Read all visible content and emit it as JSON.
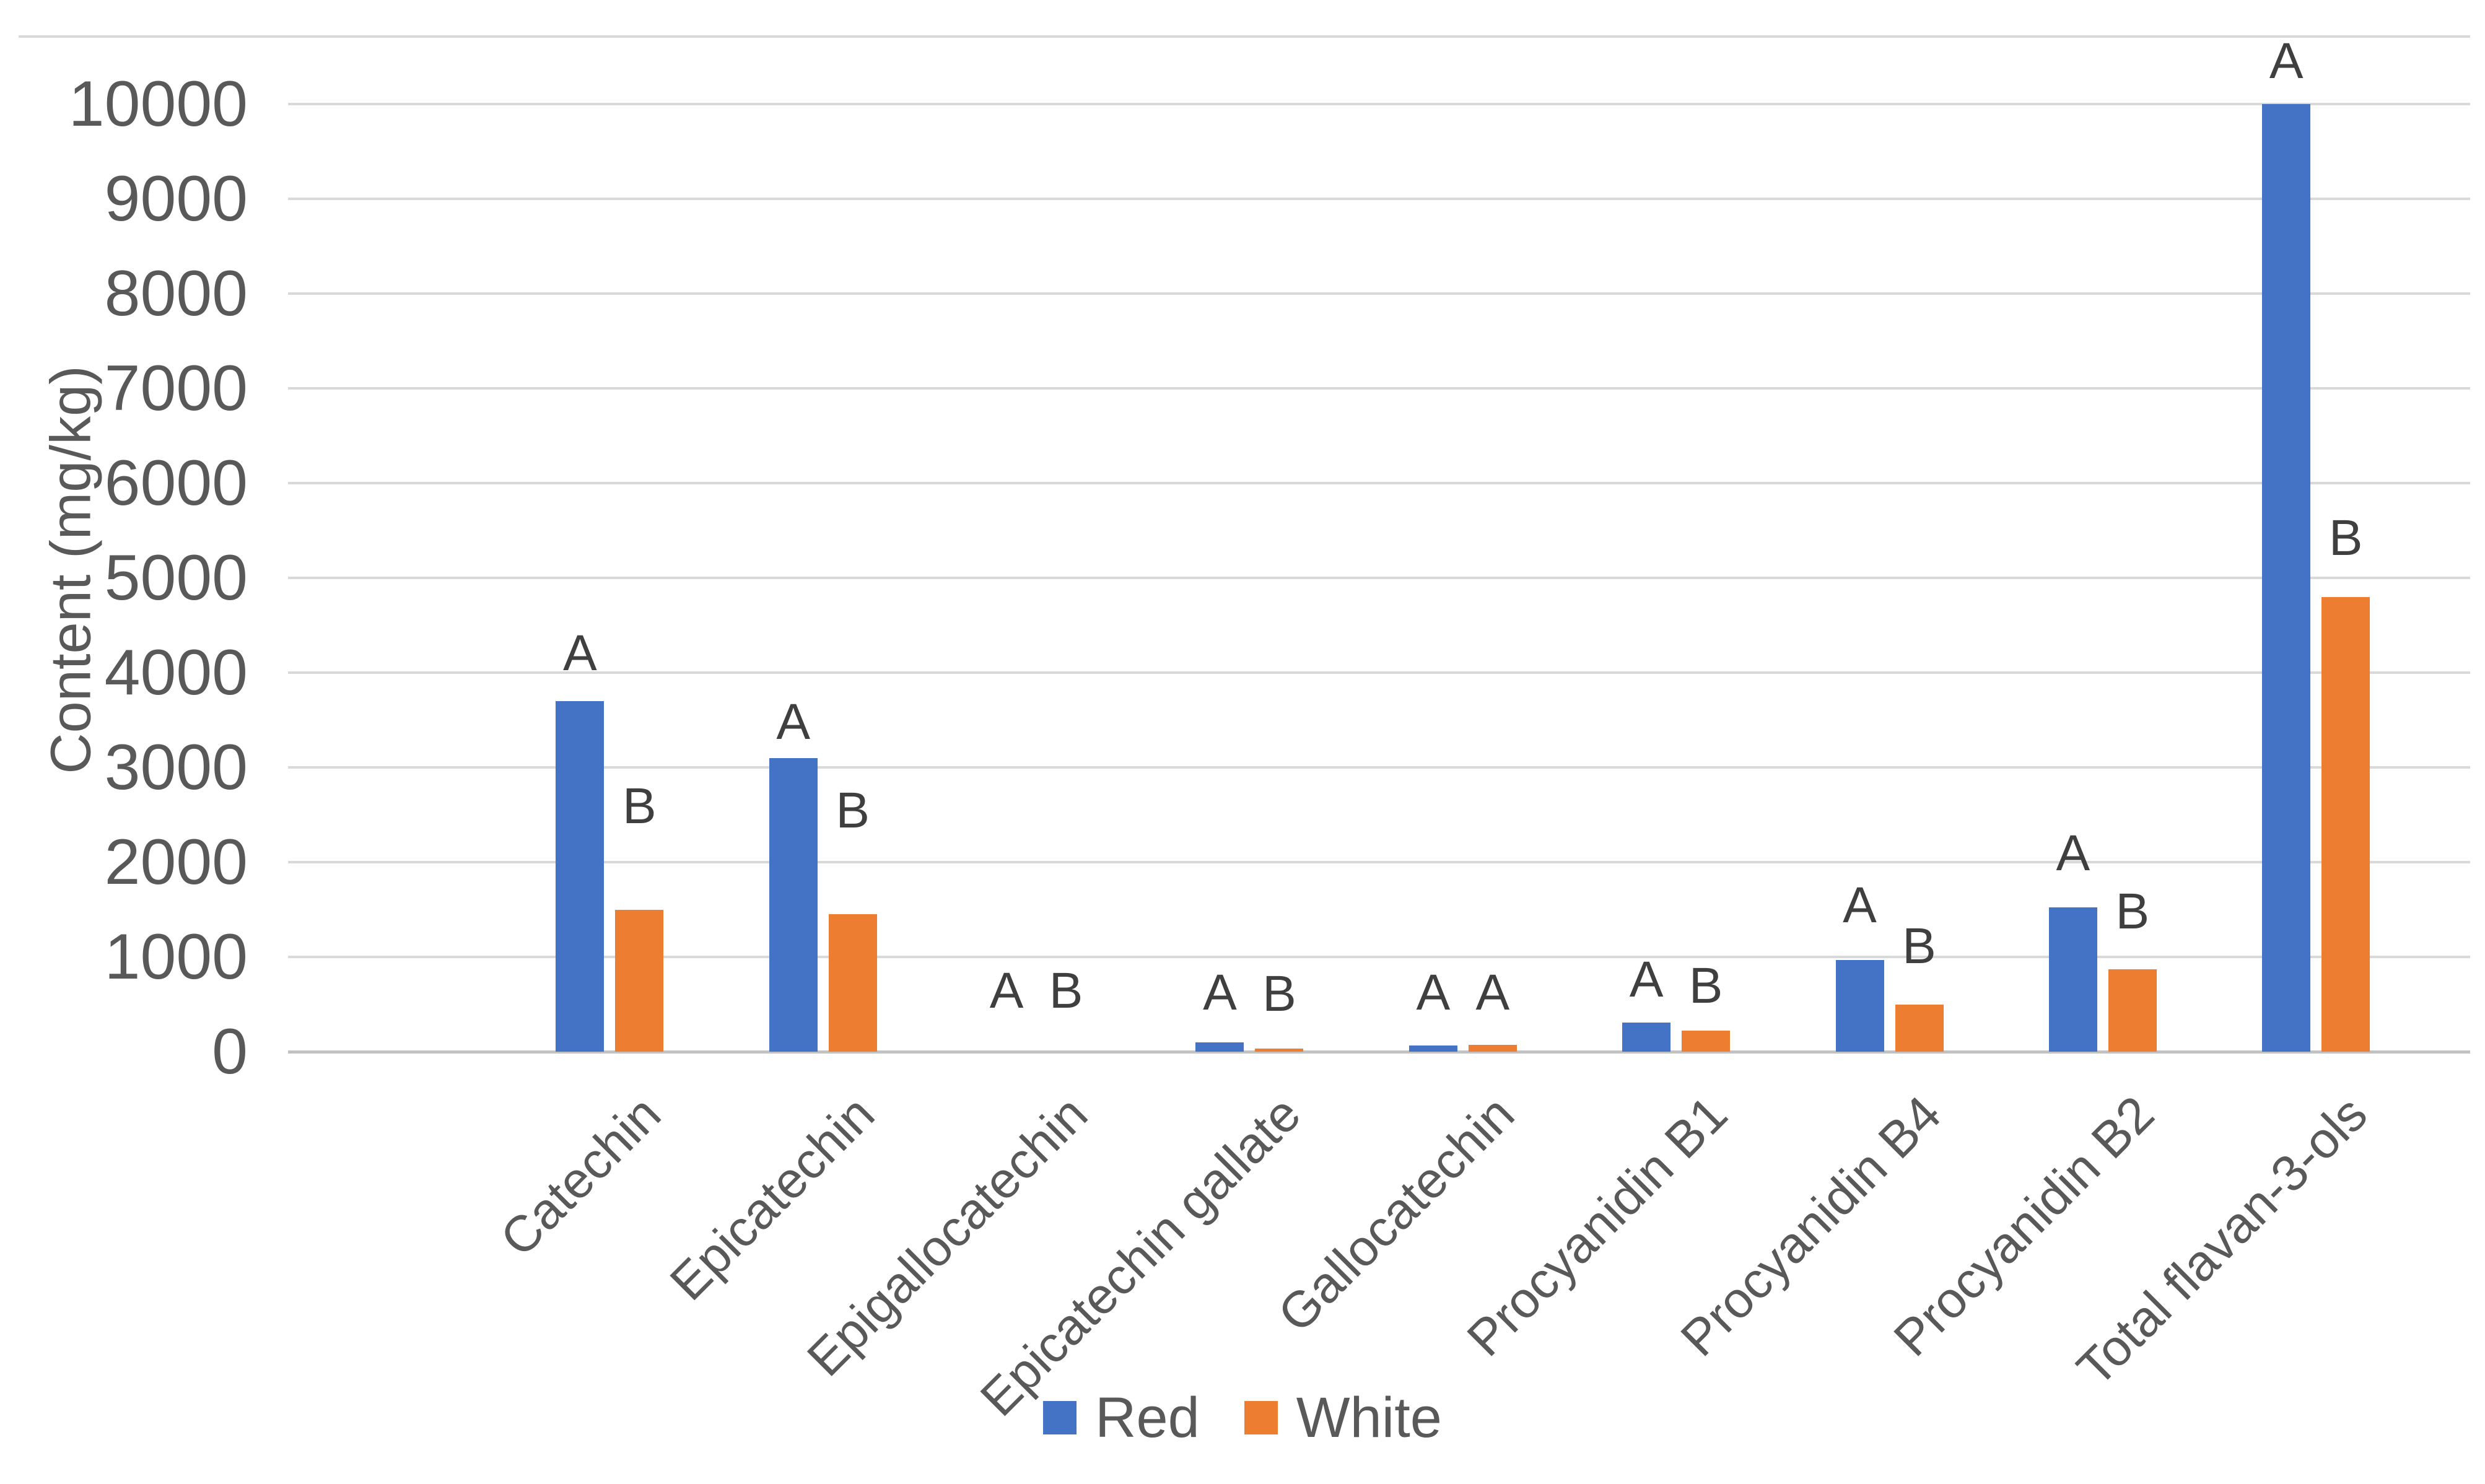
{
  "chart_data": {
    "type": "bar",
    "title": "",
    "xlabel": "",
    "ylabel": "Content (mg/kg)",
    "ylim": [
      0,
      10000
    ],
    "ytick_step": 1000,
    "ytick_labels": [
      "0",
      "1000",
      "2000",
      "3000",
      "4000",
      "5000",
      "6000",
      "7000",
      "8000",
      "9000",
      "10000"
    ],
    "grid": true,
    "legend_position": "bottom-center",
    "categories": [
      "Catechin",
      "Epicatechin",
      "Epigallocatechin",
      "Epicatechin gallate",
      "Gallocatechin",
      "Procyanidin B1",
      "Procyanidin B4",
      "Procyanidin B2",
      "Total flavan-3-ols"
    ],
    "series": [
      {
        "name": "Red",
        "color": "#4472C4",
        "values": [
          3700,
          3100,
          0,
          100,
          65,
          310,
          970,
          1520,
          10000
        ],
        "sig_letters": [
          "A",
          "A",
          "A",
          "A",
          "A",
          "A",
          "A",
          "A",
          "A"
        ],
        "sig_letter_y": [
          4200,
          3480,
          640,
          620,
          620,
          760,
          1540,
          2090,
          10450
        ]
      },
      {
        "name": "White",
        "color": "#ED7D31",
        "values": [
          1500,
          1450,
          0,
          35,
          75,
          225,
          500,
          870,
          4800
        ],
        "sig_letters": [
          "B",
          "B",
          "B",
          "B",
          "A",
          "B",
          "B",
          "B",
          "B"
        ],
        "sig_letter_y": [
          2590,
          2540,
          640,
          610,
          620,
          690,
          1110,
          1480,
          5420
        ]
      }
    ]
  },
  "colors": {
    "gridline": "#d9d9d9",
    "axis_line": "#c2c2c2",
    "tick_text": "#595959",
    "letter_text": "#3f3f3f"
  }
}
